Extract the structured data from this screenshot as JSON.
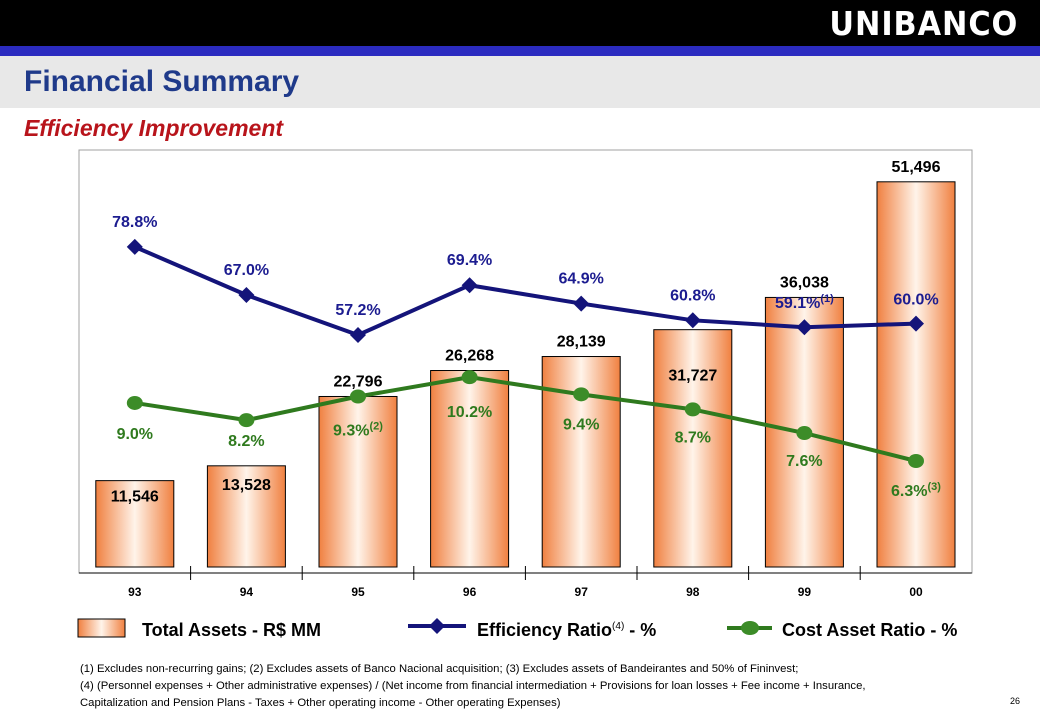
{
  "header": {
    "logo_text": "UNIBANCO",
    "title": "Financial Summary",
    "subtitle": "Efficiency Improvement"
  },
  "colors": {
    "bar_fill": "#f08040",
    "efficiency_line": "#14147a",
    "cost_line": "#2f7a1e",
    "cost_marker": "#3c8c28",
    "cost_label": "#2f7a1e",
    "efficiency_label": "#1c1c90"
  },
  "chart_data": {
    "type": "bar",
    "categories": [
      "93",
      "94",
      "95",
      "96",
      "97",
      "98",
      "99",
      "00"
    ],
    "series": [
      {
        "name": "Total Assets - R$ MM",
        "type": "bar",
        "values": [
          11546,
          13528,
          22796,
          26268,
          28139,
          31727,
          36038,
          51496
        ],
        "labels": [
          "11,546",
          "13,528",
          "22,796",
          "26,268",
          "28,139",
          "31,727",
          "36,038",
          "51,496"
        ]
      },
      {
        "name": "Efficiency Ratio - %",
        "type": "line",
        "values": [
          78.8,
          67.0,
          57.2,
          69.4,
          64.9,
          60.8,
          59.1,
          60.0
        ],
        "labels": [
          "78.8%",
          "67.0%",
          "57.2%",
          "69.4%",
          "64.9%",
          "60.8%",
          "59.1%",
          "60.0%"
        ],
        "notes": [
          "",
          "",
          "",
          "",
          "",
          "",
          "(1)",
          ""
        ]
      },
      {
        "name": "Cost Asset Ratio - %",
        "type": "line",
        "values": [
          9.0,
          8.2,
          9.3,
          10.2,
          9.4,
          8.7,
          7.6,
          6.3
        ],
        "labels": [
          "9.0%",
          "8.2%",
          "9.3%",
          "10.2%",
          "9.4%",
          "8.7%",
          "7.6%",
          "6.3%"
        ],
        "notes": [
          "",
          "",
          "(2)",
          "",
          "",
          "",
          "",
          "(3)"
        ]
      }
    ]
  },
  "legend": {
    "assets": "Total Assets - R$ MM",
    "efficiency": "Efficiency Ratio",
    "efficiency_note": "(4)",
    "efficiency_suffix": " - %",
    "cost": "Cost Asset Ratio - %"
  },
  "footnotes": {
    "line1": "(1) Excludes non-recurring gains; (2) Excludes assets of Banco Nacional acquisition; (3) Excludes assets of Bandeirantes and 50% of Fininvest;",
    "line2": "(4) (Personnel expenses + Other administrative expenses) / (Net income from financial intermediation + Provisions for loan losses + Fee income + Insurance,",
    "line3": "Capitalization and Pension Plans - Taxes + Other operating income - Other operating Expenses)"
  },
  "page_number": "26"
}
